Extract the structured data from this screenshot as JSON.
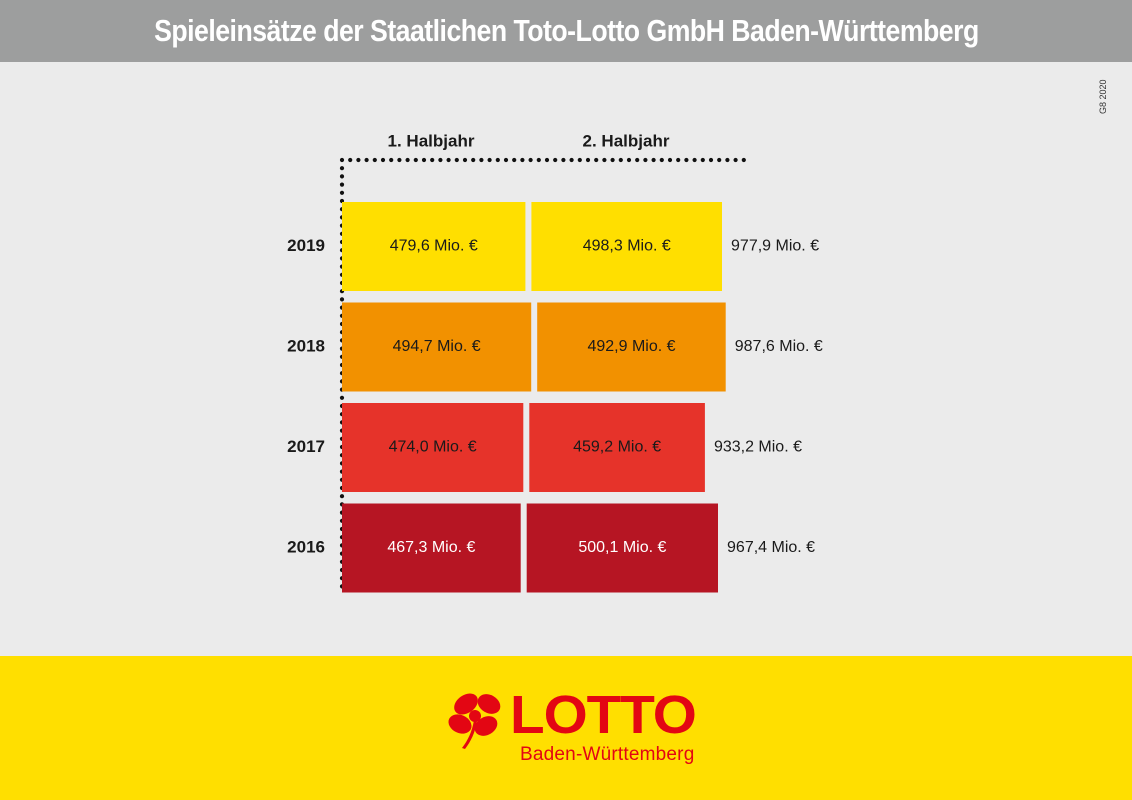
{
  "header": {
    "title": "Spieleinsätze der Staatlichen Toto-Lotto GmbH Baden-Württemberg"
  },
  "copyright": "G8 2020",
  "chart_data": {
    "type": "bar",
    "orientation": "horizontal-stacked",
    "title": "Spieleinsätze der Staatlichen Toto-Lotto GmbH Baden-Württemberg",
    "columns": [
      "1. Halbjahr",
      "2. Halbjahr"
    ],
    "rows": [
      {
        "year": "2019",
        "h1": 479.6,
        "h2": 498.3,
        "total": 977.9,
        "h1_label": "479,6 Mio. €",
        "h2_label": "498,3 Mio. €",
        "total_label": "977,9 Mio. €",
        "color": "#ffdf00",
        "text_color": "#1a1a1a"
      },
      {
        "year": "2018",
        "h1": 494.7,
        "h2": 492.9,
        "total": 987.6,
        "h1_label": "494,7 Mio. €",
        "h2_label": "492,9 Mio. €",
        "total_label": "987,6 Mio. €",
        "color": "#f29100",
        "text_color": "#1a1a1a"
      },
      {
        "year": "2017",
        "h1": 474.0,
        "h2": 459.2,
        "total": 933.2,
        "h1_label": "474,0 Mio. €",
        "h2_label": "459,2 Mio. €",
        "total_label": "933,2 Mio. €",
        "color": "#e6332a",
        "text_color": "#1a1a1a"
      },
      {
        "year": "2016",
        "h1": 467.3,
        "h2": 500.1,
        "total": 967.4,
        "h1_label": "467,3 Mio. €",
        "h2_label": "500,1 Mio. €",
        "total_label": "967,4 Mio. €",
        "color": "#b61523",
        "text_color": "#ffffff"
      }
    ],
    "unit": "Mio. €"
  },
  "logo": {
    "word": "LOTTO",
    "sub": "Baden-Württemberg",
    "color": "#e30613"
  },
  "colors": {
    "header_bg": "#9d9e9e",
    "background": "#ebebeb",
    "footer_bg": "#ffdf00"
  }
}
